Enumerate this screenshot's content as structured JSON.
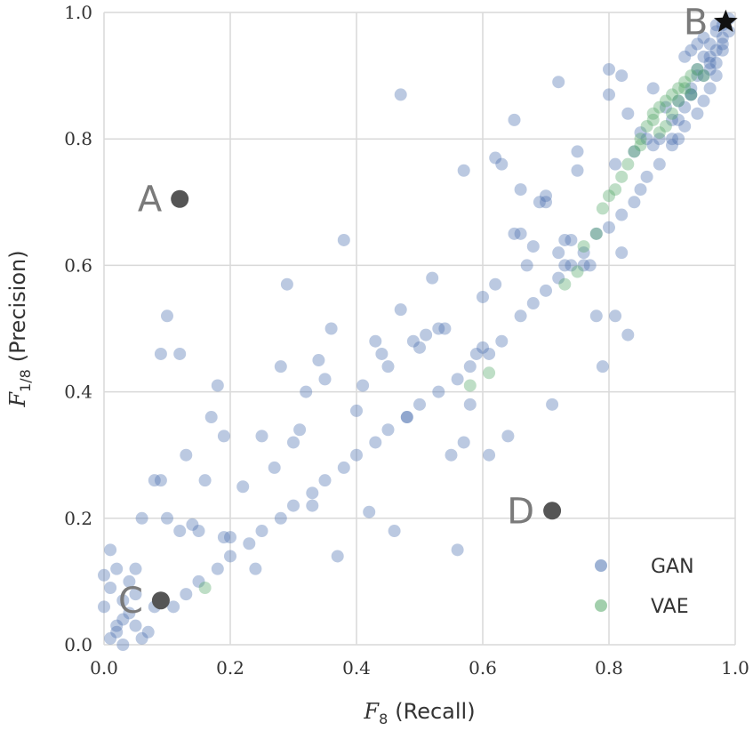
{
  "chart_data": {
    "type": "scatter",
    "title": "",
    "xlabel": {
      "main": "F",
      "sub": "8",
      "tail": "(Recall)"
    },
    "ylabel": {
      "main": "F",
      "sub": "1/8",
      "tail": "(Precision)"
    },
    "xlim": [
      0,
      1
    ],
    "ylim": [
      0,
      1
    ],
    "xticks": [
      0.0,
      0.2,
      0.4,
      0.6,
      0.8,
      1.0
    ],
    "yticks": [
      0.0,
      0.2,
      0.4,
      0.6,
      0.8,
      1.0
    ],
    "xtick_labels": [
      "0.0",
      "0.2",
      "0.4",
      "0.6",
      "0.8",
      "1.0"
    ],
    "ytick_labels": [
      "0.0",
      "0.2",
      "0.4",
      "0.6",
      "0.8",
      "1.0"
    ],
    "grid": true,
    "legend_position": "bottom-right",
    "colors": {
      "GAN": "#4c72b0",
      "VAE": "#55a868",
      "annotation": "#555555",
      "grid": "#d9d9d9"
    },
    "series": [
      {
        "name": "GAN",
        "x": [
          0.01,
          0.02,
          0.03,
          0.04,
          0.05,
          0.06,
          0.0,
          0.01,
          0.02,
          0.03,
          0.04,
          0.05,
          0.07,
          0.08,
          0.02,
          0.03,
          0.05,
          0.01,
          0.0,
          0.06,
          0.08,
          0.09,
          0.1,
          0.12,
          0.13,
          0.15,
          0.16,
          0.18,
          0.19,
          0.2,
          0.22,
          0.25,
          0.28,
          0.3,
          0.32,
          0.34,
          0.35,
          0.37,
          0.4,
          0.41,
          0.43,
          0.45,
          0.47,
          0.48,
          0.5,
          0.52,
          0.53,
          0.55,
          0.57,
          0.58,
          0.6,
          0.62,
          0.63,
          0.65,
          0.67,
          0.68,
          0.7,
          0.72,
          0.73,
          0.75,
          0.77,
          0.78,
          0.8,
          0.82,
          0.83,
          0.85,
          0.87,
          0.88,
          0.9,
          0.12,
          0.1,
          0.09,
          0.14,
          0.17,
          0.19,
          0.24,
          0.27,
          0.29,
          0.31,
          0.33,
          0.36,
          0.38,
          0.42,
          0.44,
          0.46,
          0.49,
          0.51,
          0.54,
          0.56,
          0.59,
          0.61,
          0.64,
          0.66,
          0.69,
          0.71,
          0.74,
          0.76,
          0.79,
          0.81,
          0.84,
          0.86,
          0.89,
          0.91,
          0.93,
          0.95,
          0.96,
          0.97,
          0.98,
          0.92,
          0.94,
          0.95,
          0.96,
          0.97,
          0.98,
          0.93,
          0.94,
          0.96,
          0.97,
          0.99,
          0.9,
          0.91,
          0.88,
          0.86,
          0.85,
          0.84,
          0.82,
          0.8,
          0.78,
          0.76,
          0.74,
          0.72,
          0.7,
          0.68,
          0.66,
          0.63,
          0.61,
          0.58,
          0.56,
          0.53,
          0.5,
          0.48,
          0.45,
          0.43,
          0.4,
          0.38,
          0.35,
          0.33,
          0.3,
          0.28,
          0.25,
          0.23,
          0.2,
          0.18,
          0.15,
          0.13,
          0.11,
          0.47,
          0.57,
          0.6,
          0.62,
          0.65,
          0.66,
          0.7,
          0.72,
          0.73,
          0.75,
          0.8,
          0.81,
          0.82,
          0.83,
          0.87,
          0.92,
          0.93,
          0.94,
          0.95,
          0.97,
          0.98,
          0.99,
          0.96,
          0.94,
          0.91,
          0.9,
          0.92,
          0.93,
          0.96,
          0.95,
          0.97,
          0.98
        ],
        "y": [
          0.01,
          0.02,
          0.0,
          0.05,
          0.03,
          0.01,
          0.06,
          0.09,
          0.12,
          0.04,
          0.1,
          0.08,
          0.02,
          0.06,
          0.03,
          0.07,
          0.12,
          0.15,
          0.11,
          0.2,
          0.26,
          0.46,
          0.52,
          0.46,
          0.3,
          0.18,
          0.26,
          0.41,
          0.33,
          0.17,
          0.25,
          0.33,
          0.44,
          0.32,
          0.4,
          0.45,
          0.42,
          0.14,
          0.37,
          0.41,
          0.48,
          0.44,
          0.53,
          0.36,
          0.47,
          0.58,
          0.5,
          0.3,
          0.32,
          0.38,
          0.55,
          0.57,
          0.76,
          0.65,
          0.6,
          0.63,
          0.7,
          0.62,
          0.64,
          0.78,
          0.6,
          0.52,
          0.87,
          0.9,
          0.84,
          0.81,
          0.79,
          0.8,
          0.83,
          0.18,
          0.2,
          0.26,
          0.19,
          0.36,
          0.17,
          0.12,
          0.28,
          0.57,
          0.34,
          0.22,
          0.5,
          0.64,
          0.21,
          0.46,
          0.18,
          0.48,
          0.49,
          0.5,
          0.15,
          0.46,
          0.3,
          0.33,
          0.65,
          0.7,
          0.38,
          0.64,
          0.6,
          0.44,
          0.76,
          0.78,
          0.8,
          0.85,
          0.86,
          0.87,
          0.9,
          0.92,
          0.94,
          0.96,
          0.82,
          0.84,
          0.86,
          0.88,
          0.9,
          0.95,
          0.87,
          0.91,
          0.93,
          0.98,
          0.97,
          0.79,
          0.8,
          0.76,
          0.74,
          0.72,
          0.7,
          0.68,
          0.66,
          0.65,
          0.62,
          0.6,
          0.58,
          0.56,
          0.54,
          0.52,
          0.48,
          0.46,
          0.44,
          0.42,
          0.4,
          0.38,
          0.36,
          0.34,
          0.32,
          0.3,
          0.28,
          0.26,
          0.24,
          0.22,
          0.2,
          0.18,
          0.16,
          0.14,
          0.12,
          0.1,
          0.08,
          0.06,
          0.87,
          0.75,
          0.47,
          0.77,
          0.83,
          0.72,
          0.71,
          0.89,
          0.6,
          0.75,
          0.91,
          0.52,
          0.62,
          0.49,
          0.88,
          0.93,
          0.94,
          0.95,
          0.96,
          0.97,
          0.98,
          0.99,
          0.95,
          0.9,
          0.83,
          0.8,
          0.85,
          0.88,
          0.91,
          0.93,
          0.92,
          0.94
        ]
      },
      {
        "name": "VAE",
        "x": [
          0.16,
          0.61,
          0.73,
          0.75,
          0.78,
          0.79,
          0.8,
          0.82,
          0.83,
          0.84,
          0.85,
          0.86,
          0.87,
          0.88,
          0.89,
          0.9,
          0.91,
          0.92,
          0.93,
          0.94,
          0.85,
          0.87,
          0.89,
          0.91,
          0.92,
          0.9,
          0.88,
          0.93,
          0.95,
          0.58,
          0.76,
          0.81
        ],
        "y": [
          0.09,
          0.43,
          0.57,
          0.59,
          0.65,
          0.69,
          0.71,
          0.74,
          0.76,
          0.78,
          0.8,
          0.82,
          0.84,
          0.85,
          0.86,
          0.87,
          0.88,
          0.89,
          0.9,
          0.91,
          0.79,
          0.83,
          0.82,
          0.86,
          0.88,
          0.84,
          0.81,
          0.87,
          0.9,
          0.41,
          0.63,
          0.72
        ]
      }
    ],
    "annotations": [
      {
        "label": "A",
        "x": 0.12,
        "y": 0.705,
        "label_side": "left",
        "marker": "circle"
      },
      {
        "label": "B",
        "x": 0.985,
        "y": 0.985,
        "label_side": "left",
        "marker": "star"
      },
      {
        "label": "C",
        "x": 0.09,
        "y": 0.07,
        "label_side": "left",
        "marker": "circle"
      },
      {
        "label": "D",
        "x": 0.71,
        "y": 0.212,
        "label_side": "left",
        "marker": "circle"
      }
    ],
    "legend": [
      {
        "name": "GAN"
      },
      {
        "name": "VAE"
      }
    ]
  }
}
